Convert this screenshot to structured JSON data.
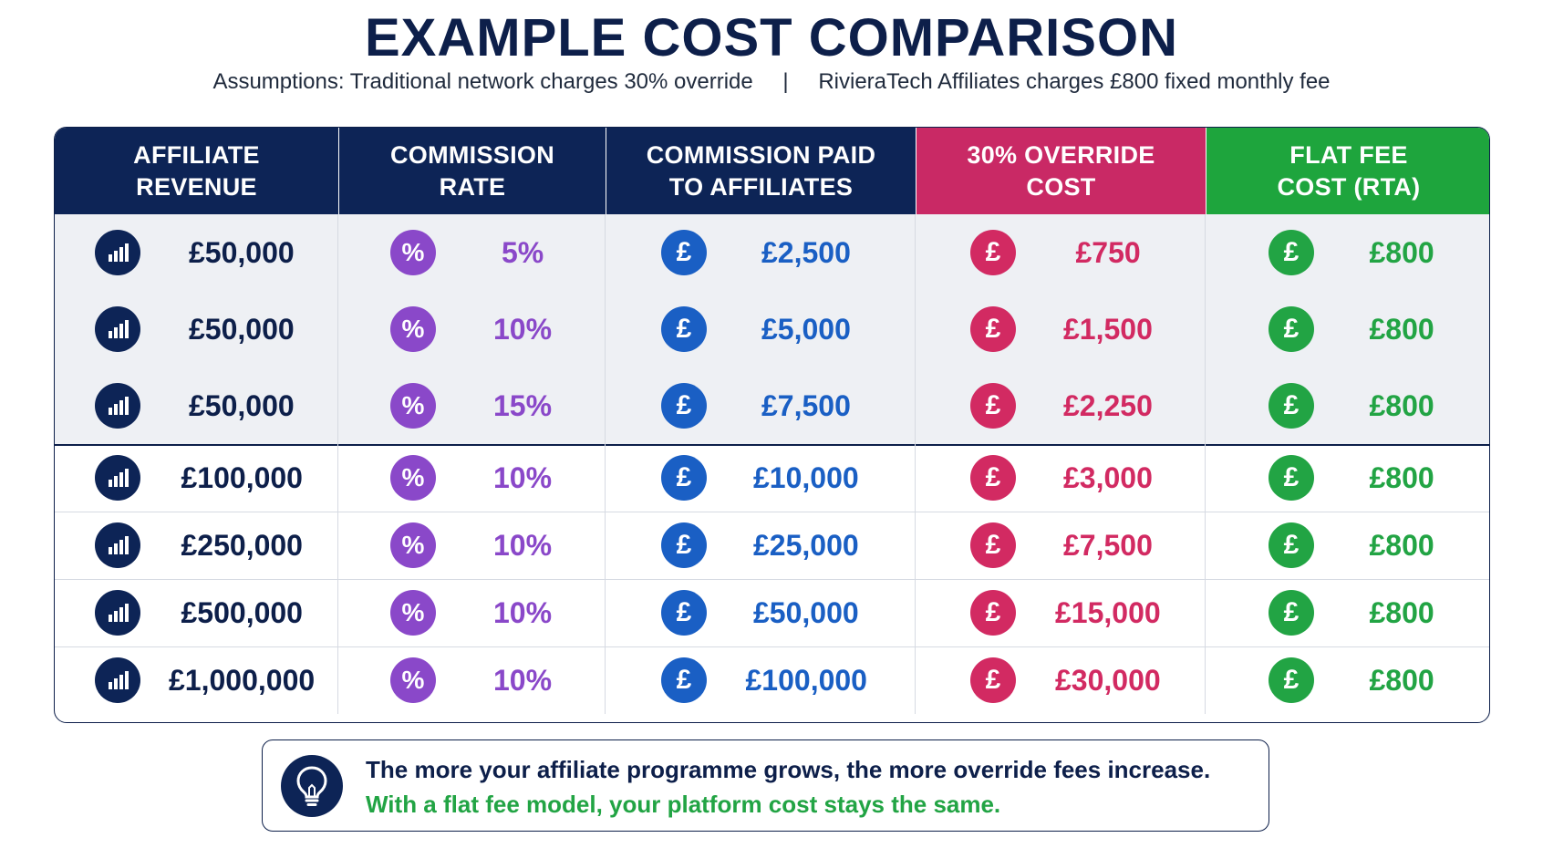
{
  "title": "EXAMPLE COST COMPARISON",
  "subtitle": {
    "left": "Assumptions: Traditional network charges 30% override",
    "separator": "|",
    "right": "RivieraTech Affiliates charges £800 fixed monthly fee"
  },
  "colors": {
    "navy": "#0d2456",
    "purple": "#8a48c9",
    "blue": "#1a5fc4",
    "pink": "#d22a62",
    "green": "#22a444",
    "shaded_row": "#eef0f4"
  },
  "chart_data": {
    "type": "table",
    "columns": [
      {
        "label": "AFFILIATE REVENUE",
        "lines": [
          "AFFILIATE",
          "REVENUE"
        ],
        "color": "navy",
        "icon": "bar-chart-icon"
      },
      {
        "label": "COMMISSION RATE",
        "lines": [
          "COMMISSION",
          "RATE"
        ],
        "color": "purple",
        "icon": "percent-icon"
      },
      {
        "label": "COMMISSION PAID TO AFFILIATES",
        "lines": [
          "COMMISSION PAID",
          "TO AFFILIATES"
        ],
        "color": "blue",
        "icon": "pound-icon"
      },
      {
        "label": "30% OVERRIDE COST",
        "lines": [
          "30% OVERRIDE",
          "COST"
        ],
        "color": "pink",
        "icon": "pound-icon"
      },
      {
        "label": "FLAT FEE COST (RTA)",
        "lines": [
          "FLAT FEE",
          "COST (RTA)"
        ],
        "color": "green",
        "icon": "pound-icon"
      }
    ],
    "rows": [
      {
        "revenue": "£50,000",
        "rate": "5%",
        "commission": "£2,500",
        "override": "£750",
        "flat_fee": "£800",
        "shaded": true
      },
      {
        "revenue": "£50,000",
        "rate": "10%",
        "commission": "£5,000",
        "override": "£1,500",
        "flat_fee": "£800",
        "shaded": true
      },
      {
        "revenue": "£50,000",
        "rate": "15%",
        "commission": "£7,500",
        "override": "£2,250",
        "flat_fee": "£800",
        "shaded": true
      },
      {
        "revenue": "£100,000",
        "rate": "10%",
        "commission": "£10,000",
        "override": "£3,000",
        "flat_fee": "£800",
        "shaded": false
      },
      {
        "revenue": "£250,000",
        "rate": "10%",
        "commission": "£25,000",
        "override": "£7,500",
        "flat_fee": "£800",
        "shaded": false
      },
      {
        "revenue": "£500,000",
        "rate": "10%",
        "commission": "£50,000",
        "override": "£15,000",
        "flat_fee": "£800",
        "shaded": false
      },
      {
        "revenue": "£1,000,000",
        "rate": "10%",
        "commission": "£100,000",
        "override": "£30,000",
        "flat_fee": "£800",
        "shaded": false
      }
    ]
  },
  "icons": {
    "percent_glyph": "%",
    "pound_glyph": "£"
  },
  "note": {
    "icon": "lightbulb-icon",
    "line1": "The more your affiliate programme grows, the more override fees increase.",
    "line2": "With a flat fee model, your platform cost stays the same."
  }
}
